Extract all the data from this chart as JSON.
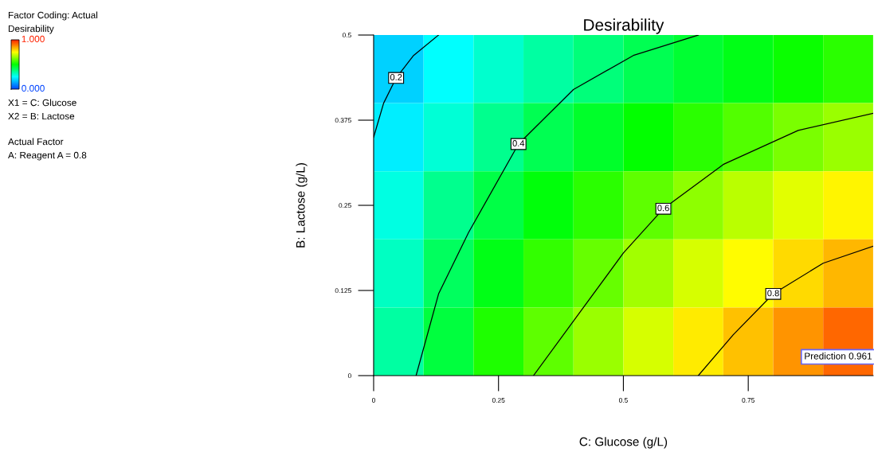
{
  "chart_data": {
    "type": "heatmap",
    "title": "Desirability",
    "xlabel": "C: Glucose (g/L)",
    "ylabel": "B: Lactose (g/L)",
    "clabel": "Desirability",
    "xlim": [
      0,
      1
    ],
    "ylim": [
      0,
      0.5
    ],
    "xticks": [
      0,
      0.25,
      0.5,
      0.75
    ],
    "yticks": [
      0,
      0.125,
      0.25,
      0.375,
      0.5
    ],
    "clim": [
      0,
      1
    ],
    "cticks": [
      {
        "value": 0,
        "label": "0.000"
      },
      {
        "value": 1,
        "label": "1.000"
      }
    ],
    "cells": [
      [
        0.19,
        0.25,
        0.3,
        0.34,
        0.38,
        0.42,
        0.45,
        0.48,
        0.51,
        0.54
      ],
      [
        0.23,
        0.29,
        0.36,
        0.42,
        0.46,
        0.5,
        0.54,
        0.58,
        0.62,
        0.65
      ],
      [
        0.28,
        0.36,
        0.43,
        0.49,
        0.54,
        0.59,
        0.64,
        0.68,
        0.72,
        0.76
      ],
      [
        0.31,
        0.41,
        0.48,
        0.55,
        0.6,
        0.66,
        0.71,
        0.75,
        0.79,
        0.83
      ],
      [
        0.34,
        0.44,
        0.53,
        0.59,
        0.65,
        0.71,
        0.77,
        0.82,
        0.87,
        0.92
      ]
    ],
    "series": [
      {
        "type": "line",
        "name": "0.2",
        "color": "#000000",
        "x": [
          0,
          0.02,
          0.045,
          0.08,
          0.13
        ],
        "values": [
          0.35,
          0.4,
          0.437,
          0.47,
          0.5
        ]
      },
      {
        "type": "line",
        "name": "0.4",
        "color": "#000000",
        "x": [
          0.085,
          0.13,
          0.19,
          0.29,
          0.4,
          0.52,
          0.65
        ],
        "values": [
          0,
          0.12,
          0.21,
          0.34,
          0.42,
          0.47,
          0.5
        ]
      },
      {
        "type": "line",
        "name": "0.6",
        "color": "#000000",
        "x": [
          0.32,
          0.42,
          0.5,
          0.58,
          0.7,
          0.85,
          1
        ],
        "values": [
          0,
          0.1,
          0.18,
          0.245,
          0.31,
          0.36,
          0.385
        ]
      },
      {
        "type": "line",
        "name": "0.8",
        "color": "#000000",
        "x": [
          0.65,
          0.72,
          0.8,
          0.9,
          1
        ],
        "values": [
          0,
          0.06,
          0.12,
          0.165,
          0.19
        ]
      }
    ],
    "annotations": [
      "Factor Coding: Actual",
      "X1 = C: Glucose",
      "X2 = B: Lactose",
      "Actual Factor",
      "A: Reagent A = 0.8",
      "Prediction 0.961"
    ],
    "grid": false
  }
}
